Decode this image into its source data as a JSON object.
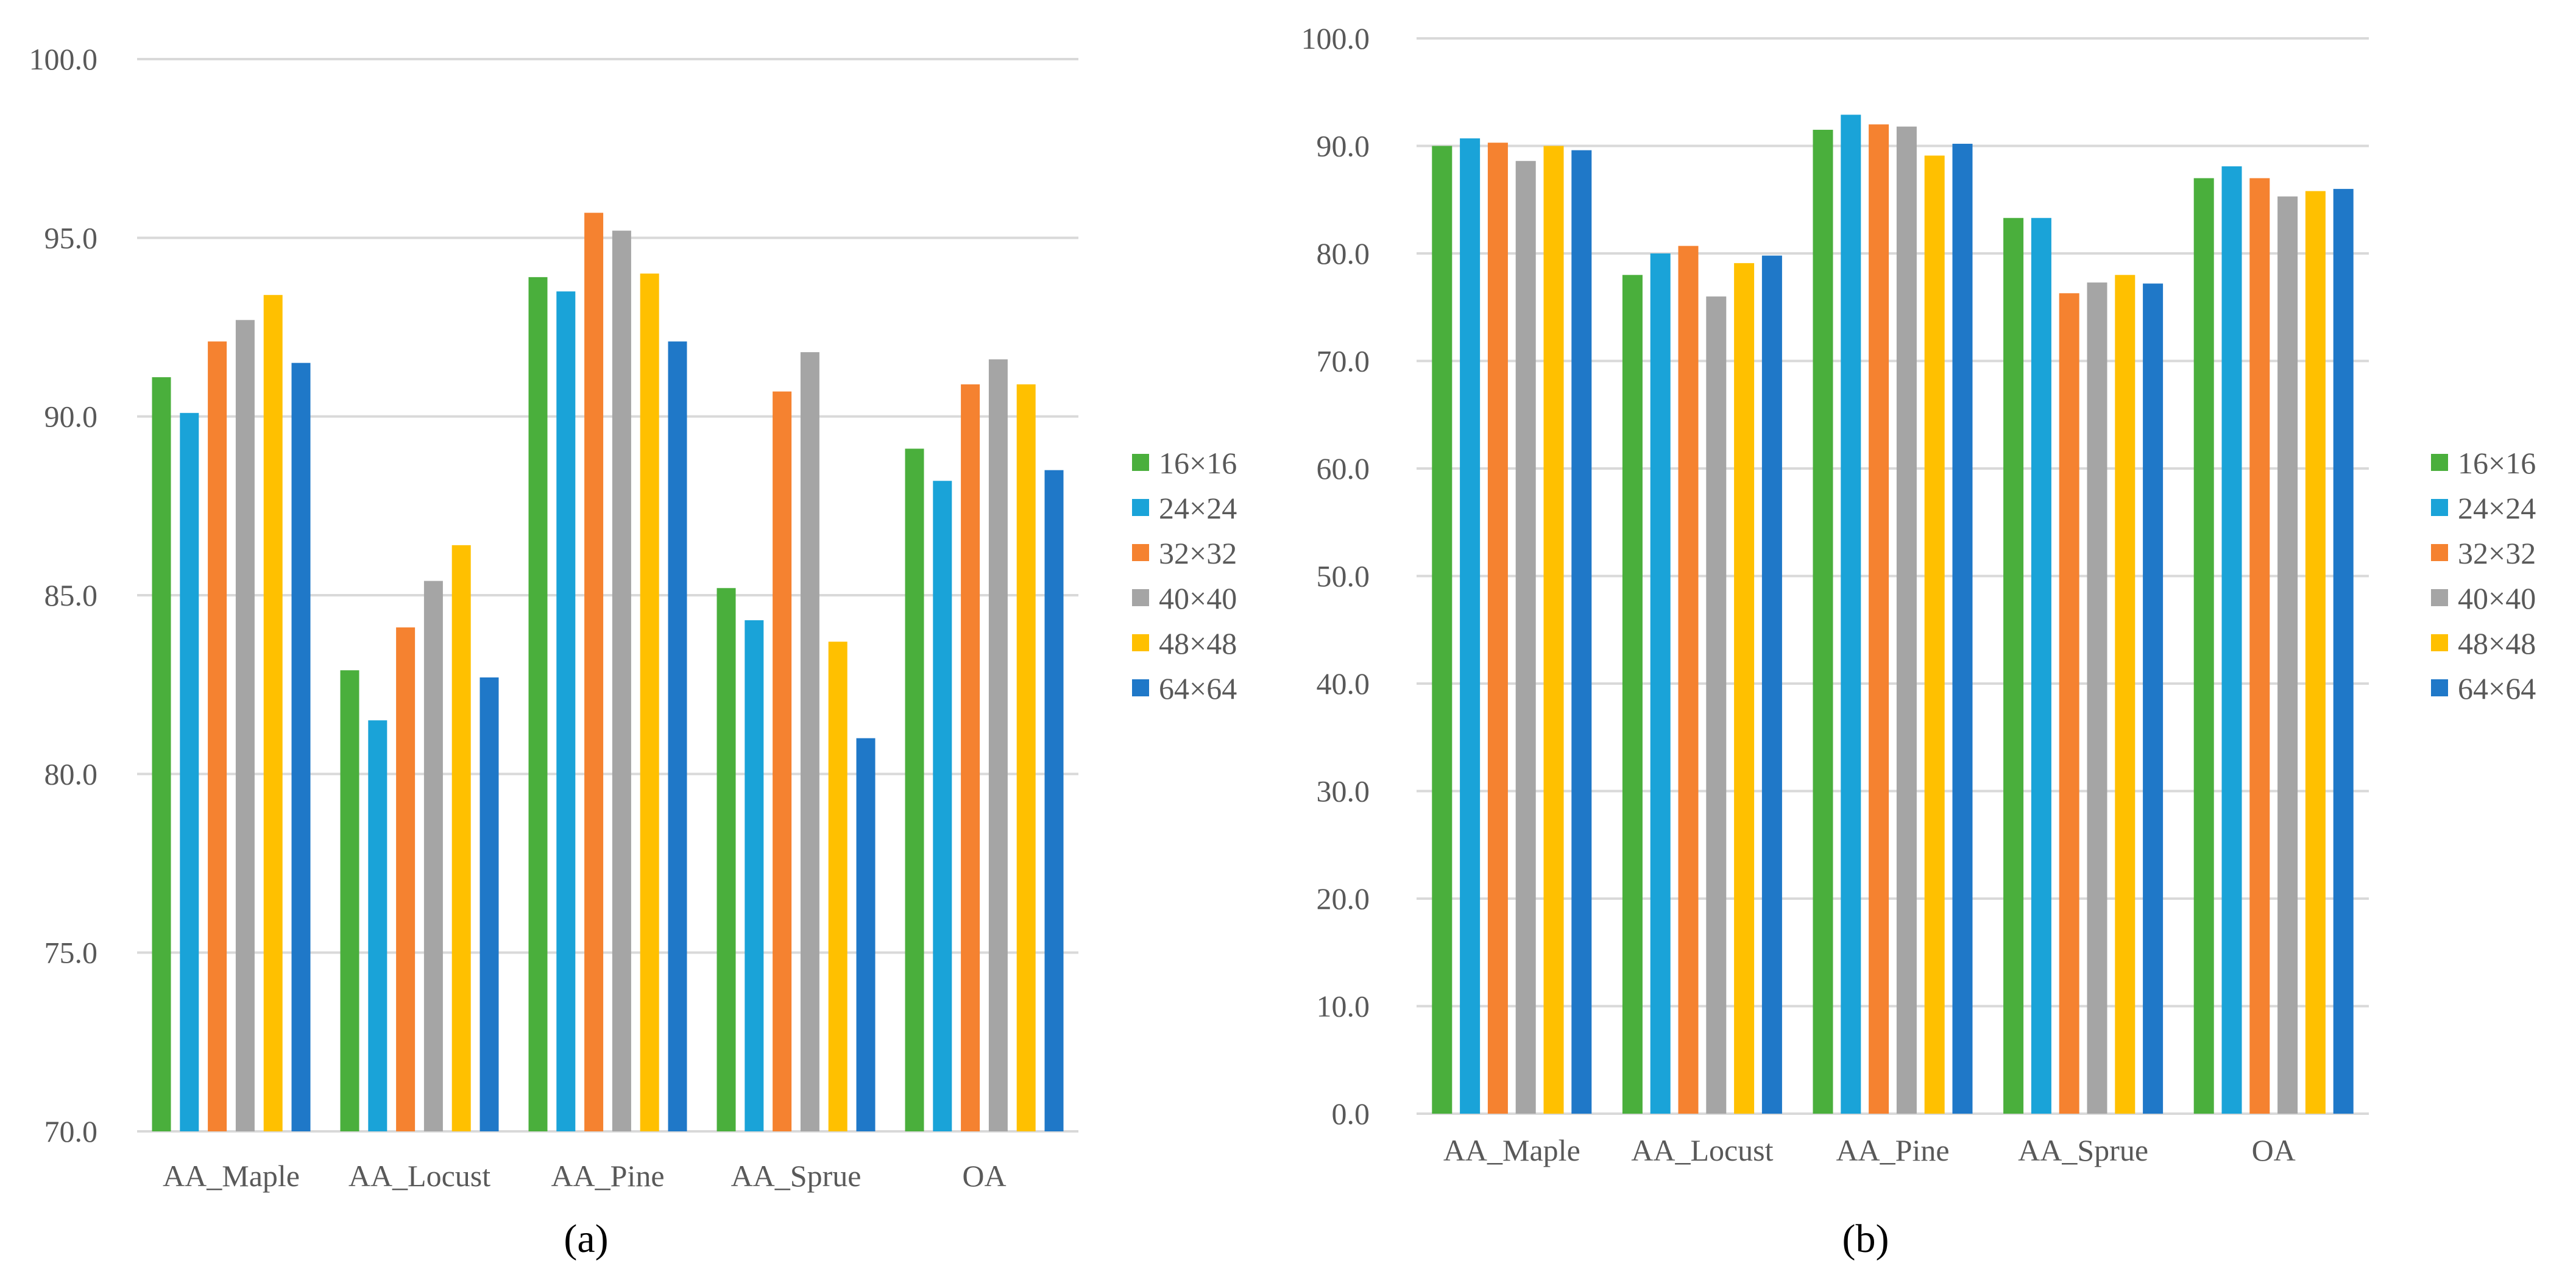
{
  "colors": {
    "16x16": "#4aaf3c",
    "24x24": "#1aa3d8",
    "32x32": "#f58230",
    "40x40": "#a5a5a5",
    "48x48": "#ffc000",
    "64x64": "#1f78c8"
  },
  "chart_data": [
    {
      "type": "bar",
      "caption": "(a)",
      "categories": [
        "AA_Maple",
        "AA_Locust",
        "AA_Pine",
        "AA_Sprue",
        "OA"
      ],
      "ylim": [
        70,
        100
      ],
      "yticks": [
        "70.0",
        "75.0",
        "80.0",
        "85.0",
        "90.0",
        "95.0",
        "100.0"
      ],
      "series": [
        {
          "name": "16×16",
          "color_key": "16x16",
          "values": [
            91.1,
            82.9,
            93.9,
            85.2,
            89.1
          ]
        },
        {
          "name": "24×24",
          "color_key": "24x24",
          "values": [
            90.1,
            81.5,
            93.5,
            84.3,
            88.2
          ]
        },
        {
          "name": "32×32",
          "color_key": "32x32",
          "values": [
            92.1,
            84.1,
            95.7,
            90.7,
            90.9
          ]
        },
        {
          "name": "40×40",
          "color_key": "40x40",
          "values": [
            92.7,
            85.4,
            95.2,
            91.8,
            91.6
          ]
        },
        {
          "name": "48×48",
          "color_key": "48x48",
          "values": [
            93.4,
            86.4,
            94.0,
            83.7,
            90.9
          ]
        },
        {
          "name": "64×64",
          "color_key": "64x64",
          "values": [
            91.5,
            82.7,
            92.1,
            81.0,
            88.5
          ]
        }
      ],
      "legend_position": "right"
    },
    {
      "type": "bar",
      "caption": "(b)",
      "categories": [
        "AA_Maple",
        "AA_Locust",
        "AA_Pine",
        "AA_Sprue",
        "OA"
      ],
      "ylim": [
        0,
        100
      ],
      "yticks": [
        "0.0",
        "10.0",
        "20.0",
        "30.0",
        "40.0",
        "50.0",
        "60.0",
        "70.0",
        "80.0",
        "90.0",
        "100.0"
      ],
      "series": [
        {
          "name": "16×16",
          "color_key": "16x16",
          "values": [
            90.0,
            78.0,
            91.5,
            83.3,
            87.0
          ]
        },
        {
          "name": "24×24",
          "color_key": "24x24",
          "values": [
            90.7,
            80.0,
            92.9,
            83.3,
            88.1
          ]
        },
        {
          "name": "32×32",
          "color_key": "32x32",
          "values": [
            90.3,
            80.7,
            92.0,
            76.3,
            87.0
          ]
        },
        {
          "name": "40×40",
          "color_key": "40x40",
          "values": [
            88.6,
            76.0,
            91.8,
            77.3,
            85.3
          ]
        },
        {
          "name": "48×48",
          "color_key": "48x48",
          "values": [
            90.0,
            79.1,
            89.1,
            78.0,
            85.8
          ]
        },
        {
          "name": "64×64",
          "color_key": "64x64",
          "values": [
            89.6,
            79.8,
            90.2,
            77.2,
            86.0
          ]
        }
      ],
      "legend_position": "right"
    }
  ]
}
